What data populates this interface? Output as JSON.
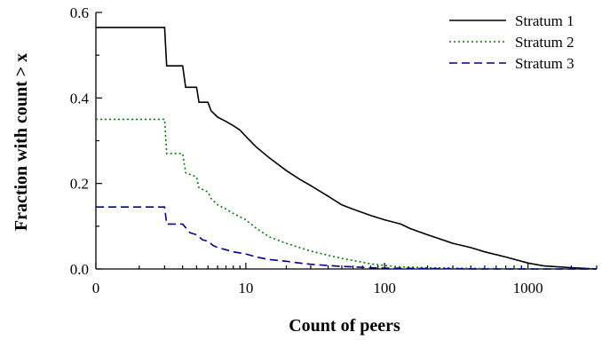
{
  "chart_data": {
    "type": "line",
    "title": "",
    "xlabel": "Count of peers",
    "ylabel": "Fraction with count > x",
    "x_scale": "log(1+x)",
    "xlim": [
      0,
      3000
    ],
    "ylim": [
      0,
      0.6
    ],
    "x_ticks": [
      0,
      10,
      100,
      1000
    ],
    "x_tick_labels": [
      "0",
      "10",
      "100",
      "1000"
    ],
    "y_ticks": [
      0,
      0.2,
      0.4,
      0.6
    ],
    "y_tick_labels": [
      "0.0",
      "0.2",
      "0.4",
      "0.6"
    ],
    "legend_position": "top-right",
    "grid": false,
    "series": [
      {
        "name": "Stratum 1",
        "color": "#000000",
        "dash": "solid",
        "x": [
          0,
          2,
          2.1,
          3,
          3.2,
          4,
          4.2,
          5,
          5.3,
          6,
          7,
          8,
          9,
          10,
          12,
          15,
          20,
          25,
          30,
          40,
          50,
          60,
          80,
          100,
          130,
          150,
          200,
          300,
          400,
          500,
          700,
          1000,
          1300,
          2000,
          3000
        ],
        "y": [
          0.565,
          0.565,
          0.475,
          0.475,
          0.425,
          0.425,
          0.39,
          0.39,
          0.37,
          0.355,
          0.345,
          0.335,
          0.325,
          0.31,
          0.285,
          0.26,
          0.23,
          0.21,
          0.195,
          0.17,
          0.15,
          0.14,
          0.125,
          0.115,
          0.105,
          0.095,
          0.08,
          0.06,
          0.05,
          0.04,
          0.028,
          0.014,
          0.007,
          0.003,
          0.0
        ]
      },
      {
        "name": "Stratum 2",
        "color": "#008000",
        "dash": "dotted",
        "x": [
          0,
          2,
          2.1,
          3,
          3.2,
          4,
          4.2,
          5,
          5.3,
          6,
          7,
          8,
          10,
          12,
          15,
          20,
          25,
          30,
          40,
          50,
          60,
          80,
          100,
          130,
          200,
          300,
          500,
          1000,
          3000
        ],
        "y": [
          0.35,
          0.35,
          0.27,
          0.27,
          0.225,
          0.215,
          0.19,
          0.18,
          0.165,
          0.15,
          0.14,
          0.13,
          0.115,
          0.095,
          0.075,
          0.06,
          0.05,
          0.042,
          0.032,
          0.025,
          0.02,
          0.012,
          0.008,
          0.005,
          0.003,
          0.002,
          0.001,
          0.0,
          0.0
        ]
      },
      {
        "name": "Stratum 3",
        "color": "#00008b",
        "dash": "dashed",
        "x": [
          0,
          2,
          2.1,
          3,
          3.5,
          4,
          4.5,
          5,
          5.5,
          6,
          7,
          8,
          10,
          12,
          15,
          20,
          25,
          30,
          40,
          50,
          60,
          80,
          100,
          200,
          500,
          1000,
          3000
        ],
        "y": [
          0.145,
          0.145,
          0.105,
          0.105,
          0.085,
          0.08,
          0.068,
          0.065,
          0.055,
          0.05,
          0.045,
          0.04,
          0.035,
          0.028,
          0.022,
          0.018,
          0.014,
          0.011,
          0.008,
          0.006,
          0.005,
          0.003,
          0.002,
          0.001,
          0.0,
          0.0,
          0.0
        ]
      }
    ]
  }
}
